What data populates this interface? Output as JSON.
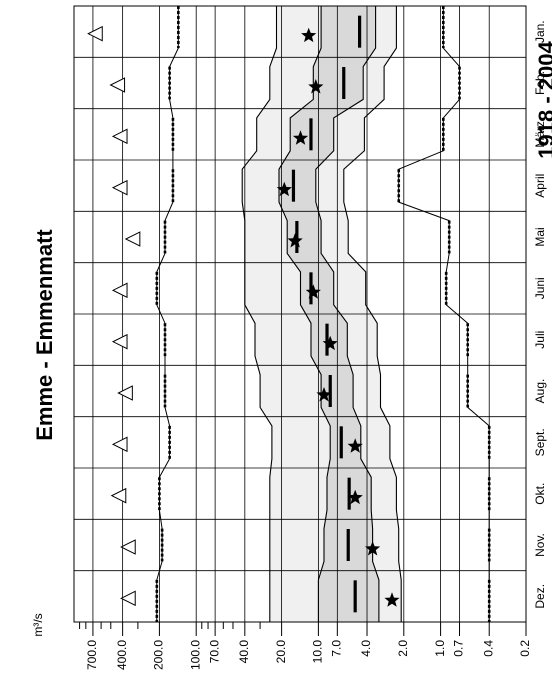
{
  "chart_data": {
    "type": "line",
    "title": "Emme - Emmenmatt",
    "subtitle": "1918 - 2004",
    "ylabel": "m³/s",
    "scale": "log",
    "ylim": [
      0.2,
      1000
    ],
    "ticks": [
      {
        "v": 700,
        "label": "700.0"
      },
      {
        "v": 400,
        "label": "400.0"
      },
      {
        "v": 200,
        "label": "200.0"
      },
      {
        "v": 100,
        "label": "100.0"
      },
      {
        "v": 70,
        "label": "70.0"
      },
      {
        "v": 40,
        "label": "40.0"
      },
      {
        "v": 20,
        "label": "20.0"
      },
      {
        "v": 10,
        "label": "10.0"
      },
      {
        "v": 7,
        "label": "7.0"
      },
      {
        "v": 4,
        "label": "4.0"
      },
      {
        "v": 2,
        "label": "2.0"
      },
      {
        "v": 1,
        "label": "1.0"
      },
      {
        "v": 0.7,
        "label": "0.7"
      },
      {
        "v": 0.4,
        "label": "0.4"
      },
      {
        "v": 0.2,
        "label": "0.2"
      }
    ],
    "minor_ticks": [
      900,
      800,
      600,
      500,
      300,
      90,
      80,
      60,
      50,
      30
    ],
    "categories": [
      "Jan.",
      "Feb.",
      "März",
      "April",
      "Mai",
      "Juni",
      "Juli",
      "Aug.",
      "Sept.",
      "Okt.",
      "Nov.",
      "Dez."
    ],
    "series": [
      {
        "role": "max",
        "values": [
          670,
          440,
          420,
          420,
          330,
          420,
          420,
          380,
          420,
          430,
          360,
          360
        ]
      },
      {
        "role": "q90",
        "values": [
          140,
          165,
          155,
          155,
          180,
          210,
          180,
          180,
          165,
          200,
          190,
          210
        ]
      },
      {
        "role": "q75",
        "values": [
          22,
          25,
          32,
          42,
          40,
          40,
          33,
          30,
          24,
          25,
          25,
          25
        ]
      },
      {
        "role": "q25",
        "values": [
          9.5,
          11,
          17,
          21,
          18,
          14,
          11.5,
          9.5,
          8,
          8.5,
          9,
          10
        ]
      },
      {
        "role": "median",
        "values": [
          4.6,
          6.2,
          11.5,
          16,
          15,
          11.5,
          8.5,
          8,
          6.5,
          5.6,
          5.7,
          5
        ]
      },
      {
        "role": "q10",
        "values": [
          3.4,
          4.3,
          7.5,
          10.5,
          9.5,
          7.5,
          5.8,
          5.2,
          4.5,
          3.7,
          3.6,
          3.2
        ]
      },
      {
        "role": "q05",
        "values": [
          2.3,
          2.9,
          4.2,
          6.2,
          5.7,
          4.1,
          3.3,
          3.1,
          2.6,
          2.3,
          2.2,
          2.1
        ]
      },
      {
        "role": "min",
        "values": [
          0.95,
          0.7,
          0.95,
          2.2,
          0.85,
          0.9,
          0.6,
          0.6,
          0.4,
          0.4,
          0.4,
          0.4
        ]
      },
      {
        "role": "mean",
        "values": [
          12,
          10.5,
          14,
          19,
          15.5,
          11,
          8,
          9,
          5,
          5,
          3.6,
          2.5
        ]
      }
    ]
  }
}
